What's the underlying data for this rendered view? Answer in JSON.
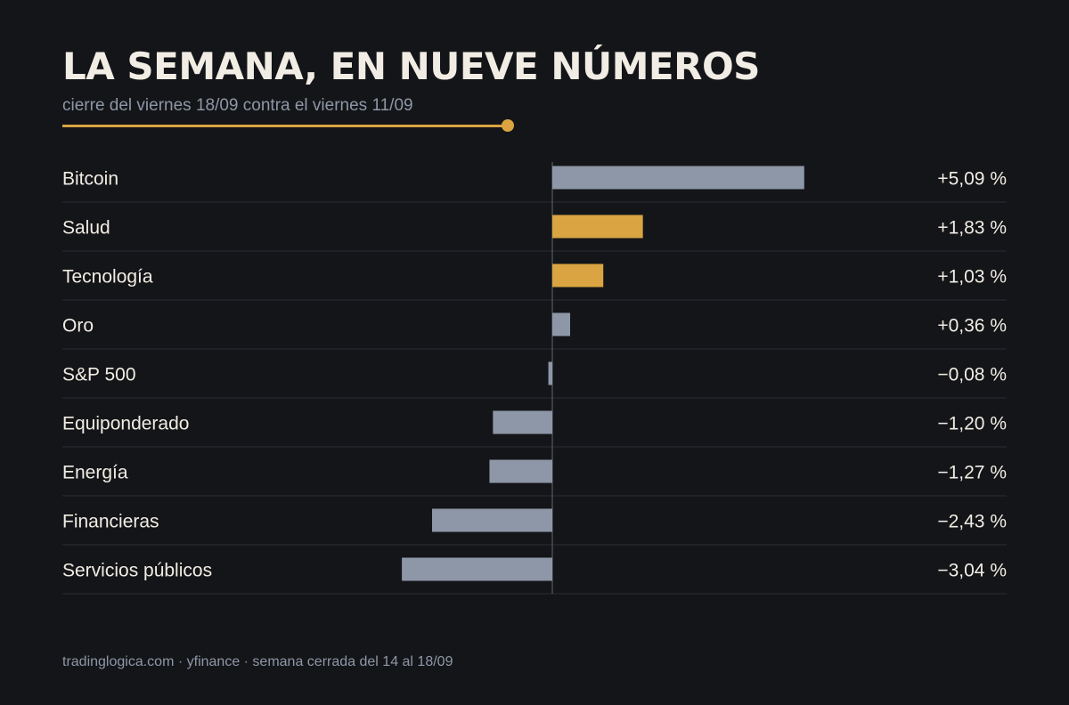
{
  "header": {
    "title": "LA SEMANA, EN NUEVE NÚMEROS",
    "subtitle": "cierre del viernes 18/09 contra el viernes 11/09"
  },
  "colors": {
    "background": "#141518",
    "neutral_bar": "#8e97a7",
    "highlight_bar": "#d9a441",
    "text": "#f1ece4",
    "muted": "#8e97a7",
    "gridline": "#2b2d33",
    "axis": "#4a4d55"
  },
  "chart_data": {
    "type": "bar",
    "orientation": "horizontal",
    "categories": [
      "Bitcoin",
      "Salud",
      "Tecnología",
      "Oro",
      "S&P 500",
      "Equiponderado",
      "Energía",
      "Financieras",
      "Servicios públicos"
    ],
    "values": [
      5.09,
      1.83,
      1.03,
      0.36,
      -0.08,
      -1.2,
      -1.27,
      -2.43,
      -3.04
    ],
    "value_labels": [
      "+5,09 %",
      "+1,83 %",
      "+1,03 %",
      "+0,36 %",
      "−0,08 %",
      "−1,20 %",
      "−1,27 %",
      "−2,43 %",
      "−3,04 %"
    ],
    "highlighted": [
      false,
      true,
      true,
      false,
      false,
      false,
      false,
      false,
      false
    ],
    "xlim": [
      -9.18,
      9.18
    ],
    "grid": "horizontal row separators",
    "legend": "none"
  },
  "footer": {
    "source": "tradinglogica.com · yfinance · semana cerrada del 14 al 18/09"
  }
}
